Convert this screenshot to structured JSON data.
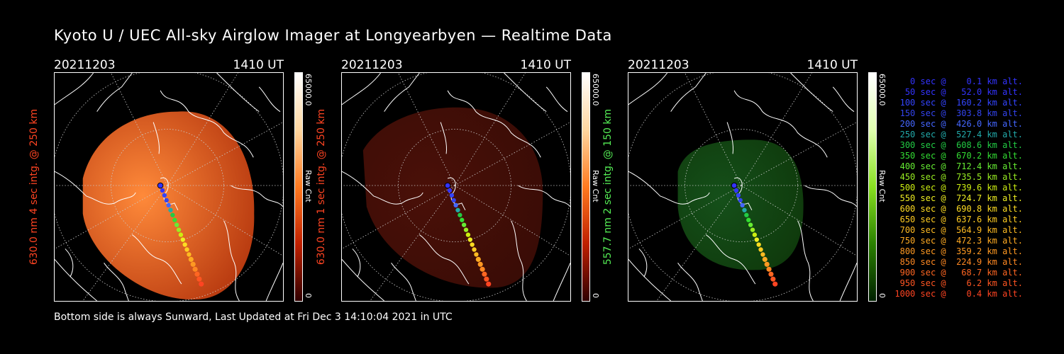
{
  "title": "Kyoto U / UEC All-sky Airglow Imager at Longyearbyen — Realtime Data",
  "footer": "Bottom side is always Sunward, Last Updated at Fri Dec  3 14:10:04 2021 in UTC",
  "panels": [
    {
      "date": "20211203",
      "time": "1410 UT",
      "ylabel": "630.0 nm  4 sec intg. @ 250 km",
      "ycolor": "#ff4422",
      "cb_max": "65000.0",
      "cb_min": "0",
      "cb_unit": "Raw Cnt",
      "tone": "red-bright"
    },
    {
      "date": "20211203",
      "time": "1410 UT",
      "ylabel": "630.0 nm  1 sec intg. @ 250 km",
      "ycolor": "#ff4422",
      "cb_max": "65000.0",
      "cb_min": "0",
      "cb_unit": "Raw Cnt",
      "tone": "red-dark"
    },
    {
      "date": "20211203",
      "time": "1410 UT",
      "ylabel": "557.7 nm  2 sec intg. @ 150 km",
      "ycolor": "#55ee55",
      "cb_max": "65000.0",
      "cb_min": "0",
      "cb_unit": "Raw Cnt",
      "tone": "green"
    }
  ],
  "legend": [
    {
      "text": "   0 sec @    0.1 km alt.",
      "color": "#3333ff"
    },
    {
      "text": "  50 sec @   52.0 km alt.",
      "color": "#3333ff"
    },
    {
      "text": " 100 sec @  160.2 km alt.",
      "color": "#3344ff"
    },
    {
      "text": " 150 sec @  303.8 km alt.",
      "color": "#3344ee"
    },
    {
      "text": " 200 sec @  426.0 km alt.",
      "color": "#4466ff"
    },
    {
      "text": " 250 sec @  527.4 km alt.",
      "color": "#22aaaa"
    },
    {
      "text": " 300 sec @  608.6 km alt.",
      "color": "#22cc44"
    },
    {
      "text": " 350 sec @  670.2 km alt.",
      "color": "#33dd33"
    },
    {
      "text": " 400 sec @  712.4 km alt.",
      "color": "#66ee33"
    },
    {
      "text": " 450 sec @  735.5 km alt.",
      "color": "#99ee22"
    },
    {
      "text": " 500 sec @  739.6 km alt.",
      "color": "#ccee11"
    },
    {
      "text": " 550 sec @  724.7 km alt.",
      "color": "#eeee22"
    },
    {
      "text": " 600 sec @  690.8 km alt.",
      "color": "#ffdd22"
    },
    {
      "text": " 650 sec @  637.6 km alt.",
      "color": "#ffcc22"
    },
    {
      "text": " 700 sec @  564.9 km alt.",
      "color": "#ffbb22"
    },
    {
      "text": " 750 sec @  472.3 km alt.",
      "color": "#ffaa22"
    },
    {
      "text": " 800 sec @  359.2 km alt.",
      "color": "#ff9922"
    },
    {
      "text": " 850 sec @  224.9 km alt.",
      "color": "#ff8822"
    },
    {
      "text": " 900 sec @   68.7 km alt.",
      "color": "#ff6622"
    },
    {
      "text": " 950 sec @    6.2 km alt.",
      "color": "#ff5522"
    },
    {
      "text": "1000 sec @    0.4 km alt.",
      "color": "#ff4422"
    }
  ]
}
